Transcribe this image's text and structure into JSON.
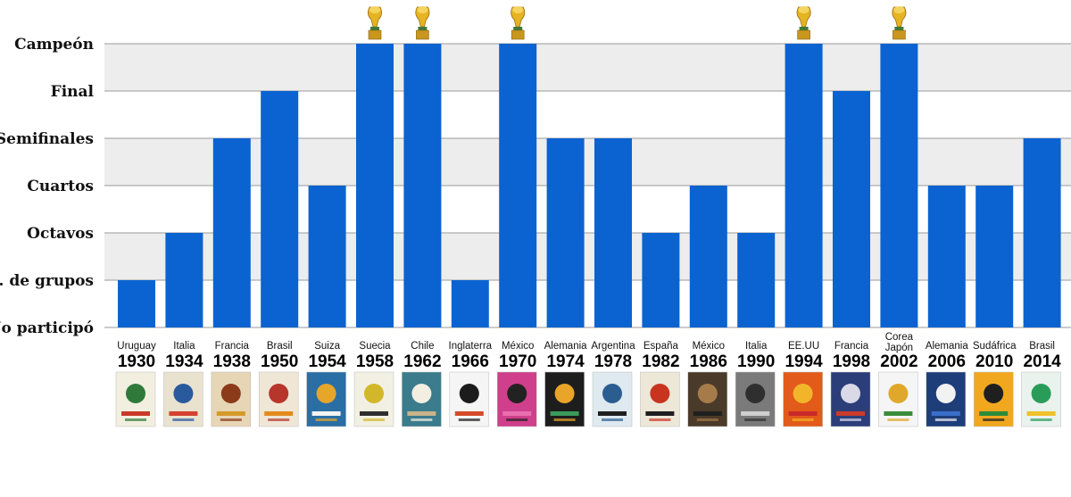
{
  "chart_data": {
    "type": "bar",
    "title": "",
    "xlabel": "",
    "ylabel": "",
    "levels": [
      "No participó",
      "F. de grupos",
      "Octavos",
      "Cuartos",
      "Semifinales",
      "Final",
      "Campeón"
    ],
    "ylim": [
      0,
      6
    ],
    "grid": true,
    "categories": [
      {
        "country": "Uruguay",
        "year": "1930"
      },
      {
        "country": "Italia",
        "year": "1934"
      },
      {
        "country": "Francia",
        "year": "1938"
      },
      {
        "country": "Brasil",
        "year": "1950"
      },
      {
        "country": "Suiza",
        "year": "1954"
      },
      {
        "country": "Suecia",
        "year": "1958"
      },
      {
        "country": "Chile",
        "year": "1962"
      },
      {
        "country": "Inglaterra",
        "year": "1966"
      },
      {
        "country": "México",
        "year": "1970"
      },
      {
        "country": "Alemania",
        "year": "1974"
      },
      {
        "country": "Argentina",
        "year": "1978"
      },
      {
        "country": "España",
        "year": "1982"
      },
      {
        "country": "México",
        "year": "1986"
      },
      {
        "country": "Italia",
        "year": "1990"
      },
      {
        "country": "EE.UU",
        "year": "1994"
      },
      {
        "country": "Francia",
        "year": "1998"
      },
      {
        "country": "Corea Japón",
        "year": "2002"
      },
      {
        "country": "Alemania",
        "year": "2006"
      },
      {
        "country": "Sudáfrica",
        "year": "2010"
      },
      {
        "country": "Brasil",
        "year": "2014"
      }
    ],
    "values": [
      1,
      2,
      4,
      5,
      3,
      6,
      6,
      1,
      6,
      4,
      4,
      2,
      3,
      2,
      6,
      5,
      6,
      3,
      3,
      4
    ],
    "bar_color": "#0a63d0",
    "trophy_icon": "world-cup-trophy-icon",
    "poster_icon": "world-cup-poster-icon"
  }
}
